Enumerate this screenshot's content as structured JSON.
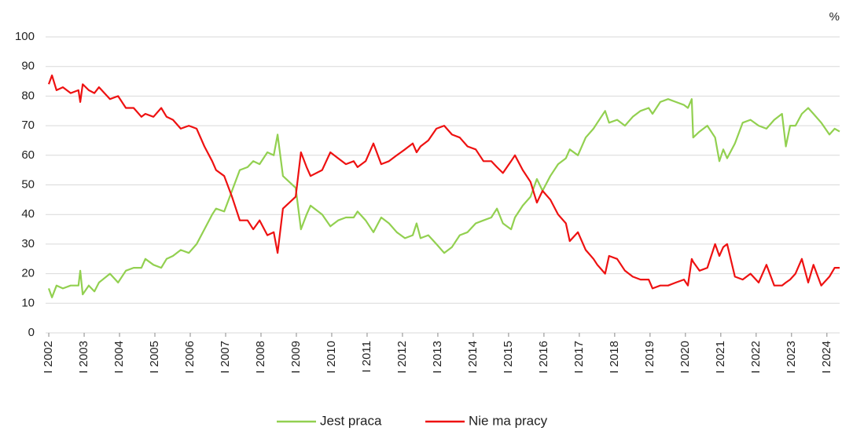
{
  "chart_data": {
    "type": "line",
    "y_unit": "%",
    "x": [
      2002,
      2002.09,
      2002.22,
      2002.4,
      2002.62,
      2002.84,
      2002.89,
      2002.96,
      2003.13,
      2003.29,
      2003.42,
      2003.73,
      2003.96,
      2004.18,
      2004.4,
      2004.62,
      2004.73,
      2004.96,
      2005.18,
      2005.33,
      2005.51,
      2005.73,
      2005.96,
      2006.18,
      2006.4,
      2006.62,
      2006.73,
      2006.96,
      2007.18,
      2007.4,
      2007.62,
      2007.78,
      2007.96,
      2008.18,
      2008.36,
      2008.47,
      2008.62,
      2008.98,
      2009.13,
      2009.29,
      2009.4,
      2009.73,
      2009.96,
      2010.18,
      2010.4,
      2010.62,
      2010.73,
      2010.96,
      2011.18,
      2011.4,
      2011.62,
      2011.84,
      2012.07,
      2012.29,
      2012.4,
      2012.51,
      2012.73,
      2012.96,
      2013.18,
      2013.4,
      2013.62,
      2013.84,
      2014.07,
      2014.29,
      2014.51,
      2014.67,
      2014.84,
      2015.07,
      2015.18,
      2015.4,
      2015.62,
      2015.8,
      2015.96,
      2016.18,
      2016.4,
      2016.62,
      2016.73,
      2016.96,
      2017.18,
      2017.4,
      2017.51,
      2017.73,
      2017.84,
      2018.07,
      2018.29,
      2018.51,
      2018.73,
      2018.96,
      2019.07,
      2019.29,
      2019.51,
      2019.73,
      2019.96,
      2020.07,
      2020.18,
      2020.22,
      2020.4,
      2020.62,
      2020.84,
      2020.96,
      2021.07,
      2021.18,
      2021.4,
      2021.62,
      2021.84,
      2022.07,
      2022.29,
      2022.51,
      2022.73,
      2022.84,
      2022.96,
      2023.11,
      2023.29,
      2023.47,
      2023.62,
      2023.84,
      2024.07,
      2024.22,
      2024.36
    ],
    "series": [
      {
        "name": "Jest praca",
        "color": "#92d050",
        "values": [
          15,
          12,
          16,
          15,
          16,
          16,
          21,
          13,
          16,
          14,
          17,
          20,
          17,
          21,
          22,
          22,
          25,
          23,
          22,
          25,
          26,
          28,
          27,
          30,
          35,
          40,
          42,
          41,
          48,
          55,
          56,
          58,
          57,
          61,
          60,
          67,
          53,
          49,
          35,
          40,
          43,
          40,
          36,
          38,
          39,
          39,
          41,
          38,
          34,
          39,
          37,
          34,
          32,
          33,
          37,
          32,
          33,
          30,
          27,
          29,
          33,
          34,
          37,
          38,
          39,
          42,
          37,
          35,
          39,
          43,
          46,
          52,
          48,
          53,
          57,
          59,
          62,
          60,
          66,
          69,
          71,
          75,
          71,
          72,
          70,
          73,
          75,
          76,
          74,
          78,
          79,
          78,
          77,
          76,
          79,
          66,
          68,
          70,
          66,
          58,
          62,
          59,
          64,
          71,
          72,
          70,
          69,
          72,
          74,
          63,
          70,
          70,
          74,
          76,
          74,
          71,
          67,
          69,
          68
        ]
      },
      {
        "name": "Nie ma pracy",
        "color": "#ee1111",
        "values": [
          84,
          87,
          82,
          83,
          81,
          82,
          78,
          84,
          82,
          81,
          83,
          79,
          80,
          76,
          76,
          73,
          74,
          73,
          76,
          73,
          72,
          69,
          70,
          69,
          63,
          58,
          55,
          53,
          46,
          38,
          38,
          35,
          38,
          33,
          34,
          27,
          42,
          46,
          61,
          56,
          53,
          55,
          61,
          59,
          57,
          58,
          56,
          58,
          64,
          57,
          58,
          60,
          62,
          64,
          61,
          63,
          65,
          69,
          70,
          67,
          66,
          63,
          62,
          58,
          58,
          56,
          54,
          58,
          60,
          55,
          51,
          44,
          48,
          45,
          40,
          37,
          31,
          34,
          28,
          25,
          23,
          20,
          26,
          25,
          21,
          19,
          18,
          18,
          15,
          16,
          16,
          17,
          18,
          16,
          25,
          24,
          21,
          22,
          30,
          26,
          29,
          30,
          19,
          18,
          20,
          17,
          23,
          16,
          16,
          17,
          18,
          20,
          25,
          17,
          23,
          16,
          19,
          22,
          22
        ]
      }
    ],
    "xlim": [
      2001.91,
      2024.36
    ],
    "xticks": [
      {
        "value": 2002,
        "label": "I 2002"
      },
      {
        "value": 2003,
        "label": "I 2003"
      },
      {
        "value": 2004,
        "label": "I 2004"
      },
      {
        "value": 2005,
        "label": "I 2005"
      },
      {
        "value": 2006,
        "label": "I 2006"
      },
      {
        "value": 2007,
        "label": "I 2007"
      },
      {
        "value": 2008,
        "label": "I 2008"
      },
      {
        "value": 2009,
        "label": "I 2009"
      },
      {
        "value": 2010,
        "label": "I 2010"
      },
      {
        "value": 2011,
        "label": "I 2011"
      },
      {
        "value": 2012,
        "label": "I 2012"
      },
      {
        "value": 2013,
        "label": "I 2013"
      },
      {
        "value": 2014,
        "label": "I 2014"
      },
      {
        "value": 2015,
        "label": "I 2015"
      },
      {
        "value": 2016,
        "label": "I 2016"
      },
      {
        "value": 2017,
        "label": "I 2017"
      },
      {
        "value": 2018,
        "label": "I 2018"
      },
      {
        "value": 2019,
        "label": "I 2019"
      },
      {
        "value": 2020,
        "label": "I 2020"
      },
      {
        "value": 2021,
        "label": "I 2021"
      },
      {
        "value": 2022,
        "label": "I 2022"
      },
      {
        "value": 2023,
        "label": "I 2023"
      },
      {
        "value": 2024,
        "label": "I 2024"
      }
    ],
    "ylim": [
      0,
      100
    ],
    "yticks": [
      0,
      10,
      20,
      30,
      40,
      50,
      60,
      70,
      80,
      90,
      100
    ],
    "grid": true
  }
}
